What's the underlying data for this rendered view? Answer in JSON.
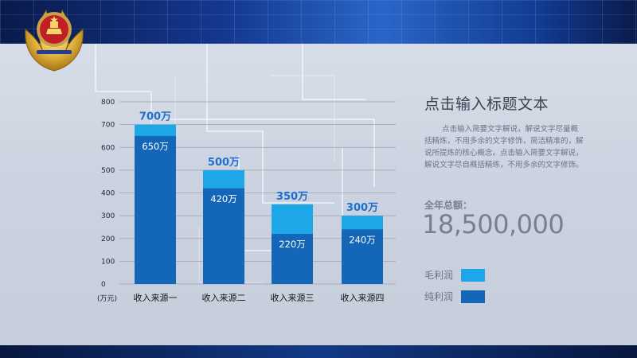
{
  "chart_data": {
    "type": "bar",
    "categories": [
      "收入来源一",
      "收入来源二",
      "收入来源三",
      "收入来源四"
    ],
    "y_unit_label": "(万元)",
    "yticks": [
      "0",
      "100",
      "200",
      "300",
      "400",
      "500",
      "600",
      "700",
      "800"
    ],
    "ylim": [
      0,
      800
    ],
    "series": [
      {
        "name": "毛利润",
        "values": [
          700,
          500,
          350,
          300
        ],
        "labels": [
          "700万",
          "500万",
          "350万",
          "300万"
        ],
        "color": "#1da7e8"
      },
      {
        "name": "纯利润",
        "values": [
          650,
          420,
          220,
          240
        ],
        "labels": [
          "650万",
          "420万",
          "220万",
          "240万"
        ],
        "color": "#1467b8"
      }
    ],
    "grid": true,
    "legend_position": "right"
  },
  "side": {
    "title": "点击输入标题文本",
    "description": "点击输入简要文字解说，解说文字尽量概括精炼，不用多余的文字修饰，简洁精准的，解说所提炼的核心概念。点击输入简要文字解说，解说文字尽自概括精练，不用多余的文字修饰。",
    "total_label": "全年总额：",
    "total_value": "18,500,000"
  },
  "legend": [
    {
      "label": "毛利润",
      "color": "#1da7e8"
    },
    {
      "label": "纯利润",
      "color": "#1467b8"
    }
  ],
  "icons": {
    "emblem": "police-emblem-icon"
  }
}
